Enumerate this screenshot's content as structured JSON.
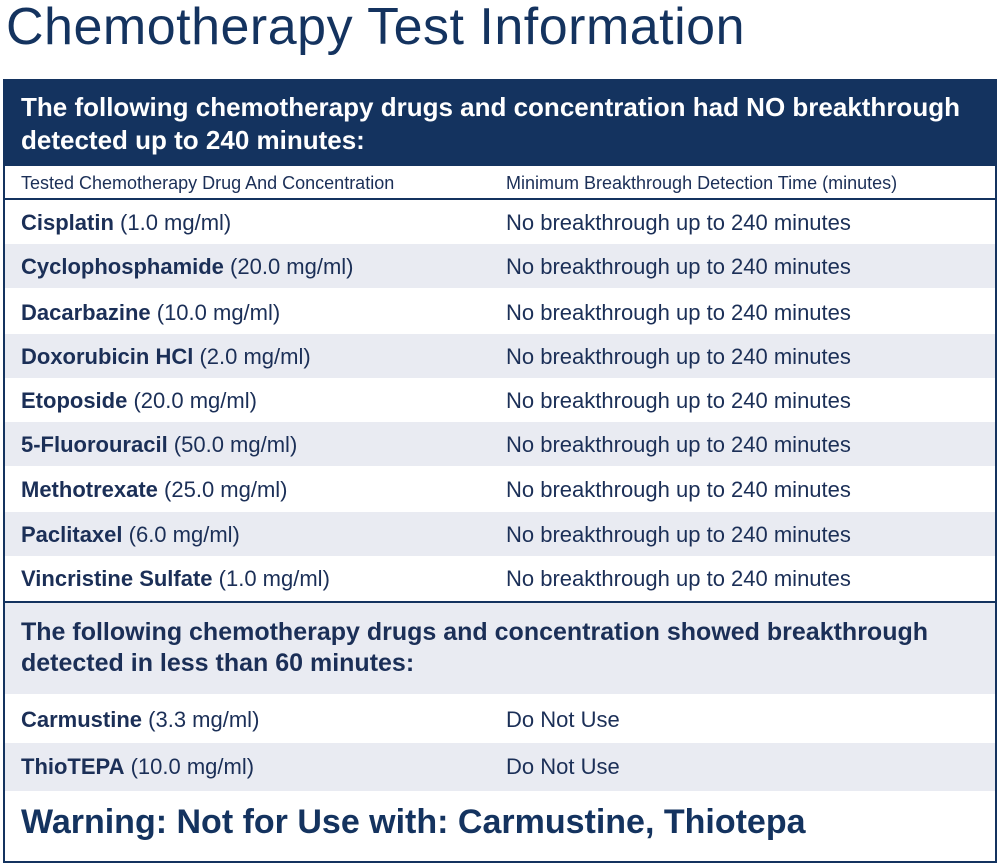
{
  "title": "Chemotherapy Test Information",
  "section1": {
    "header": "The following chemotherapy drugs and concentration had NO breakthrough detected up to 240 minutes:",
    "col1_header": "Tested Chemotherapy Drug And Concentration",
    "col2_header": "Minimum Breakthrough Detection Time (minutes)",
    "rows": [
      {
        "drug": "Cisplatin",
        "concentration": " (1.0 mg/ml)",
        "result": "No breakthrough up to 240 minutes"
      },
      {
        "drug": "Cyclophosphamide",
        "concentration": " (20.0 mg/ml)",
        "result": "No breakthrough up to 240 minutes"
      },
      {
        "drug": "Dacarbazine",
        "concentration": " (10.0 mg/ml)",
        "result": "No breakthrough up to 240 minutes"
      },
      {
        "drug": "Doxorubicin HCl",
        "concentration": " (2.0 mg/ml)",
        "result": "No breakthrough up to 240 minutes"
      },
      {
        "drug": "Etoposide",
        "concentration": " (20.0 mg/ml)",
        "result": "No breakthrough up to 240 minutes"
      },
      {
        "drug": "5-Fluorouracil",
        "concentration": " (50.0 mg/ml)",
        "result": "No breakthrough up to 240 minutes"
      },
      {
        "drug": "Methotrexate",
        "concentration": " (25.0 mg/ml)",
        "result": "No breakthrough up to 240 minutes"
      },
      {
        "drug": "Paclitaxel",
        "concentration": " (6.0 mg/ml)",
        "result": "No breakthrough up to 240 minutes"
      },
      {
        "drug": "Vincristine Sulfate",
        "concentration": " (1.0 mg/ml)",
        "result": "No breakthrough up to 240 minutes"
      }
    ]
  },
  "section2": {
    "header": "The following chemotherapy drugs and concentration showed breakthrough detected in less than 60 minutes:",
    "rows": [
      {
        "drug": "Carmustine",
        "concentration": " (3.3 mg/ml)",
        "result": "Do Not Use"
      },
      {
        "drug": "ThioTEPA",
        "concentration": " (10.0 mg/ml)",
        "result": "Do Not Use"
      }
    ]
  },
  "warning": "Warning: Not for Use with: Carmustine, Thiotepa",
  "colors": {
    "navy": "#14335f",
    "row_shade": "#e9ebf2",
    "text": "#1b2f57"
  }
}
